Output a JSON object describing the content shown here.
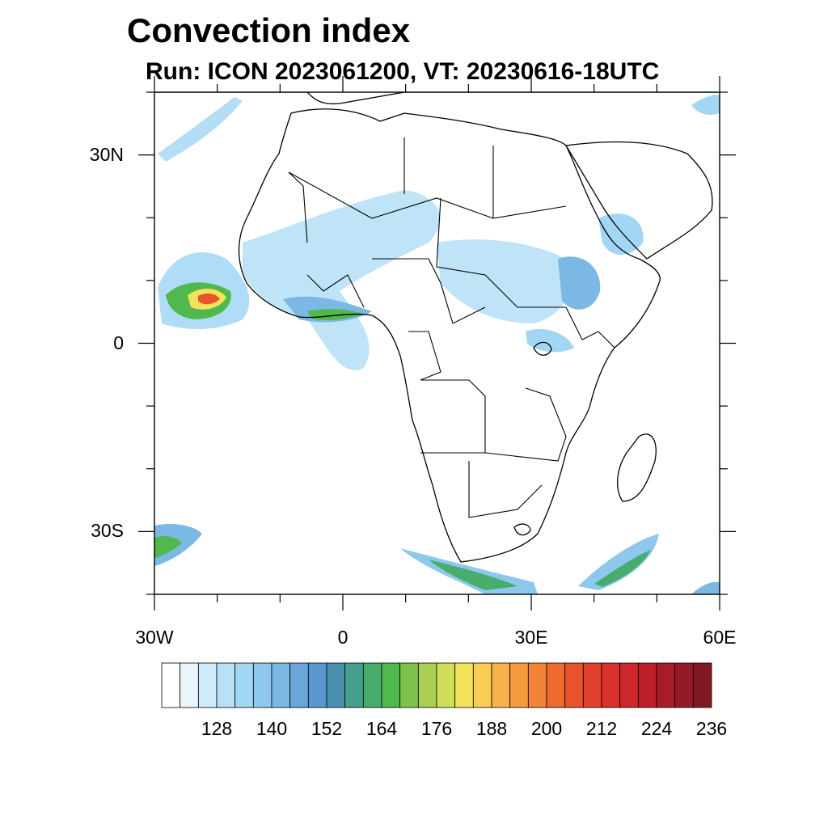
{
  "title": "Convection index",
  "subtitle": "Run: ICON 2023061200,  VT: 20230616-18UTC",
  "axes": {
    "lat_ticks": [
      {
        "value": 30,
        "label": "30N"
      },
      {
        "value": 0,
        "label": "0"
      },
      {
        "value": -30,
        "label": "30S"
      }
    ],
    "lon_ticks": [
      {
        "value": -30,
        "label": "30W"
      },
      {
        "value": 0,
        "label": "0"
      },
      {
        "value": 30,
        "label": "30E"
      },
      {
        "value": 60,
        "label": "60E"
      }
    ],
    "lon_range": [
      -30,
      60
    ],
    "lat_range": [
      -40,
      40
    ]
  },
  "colorbar": {
    "levels": [
      116,
      120,
      124,
      128,
      132,
      136,
      140,
      144,
      148,
      152,
      156,
      160,
      164,
      168,
      172,
      176,
      180,
      184,
      188,
      192,
      196,
      200,
      204,
      208,
      212,
      216,
      220,
      224,
      228,
      232,
      236
    ],
    "colors": [
      "#ffffff",
      "#eaf5fc",
      "#cfeaf8",
      "#b8e0f6",
      "#a1d6f4",
      "#8ec8ee",
      "#7cb8e4",
      "#6aa6da",
      "#5a96d0",
      "#4a8fae",
      "#47a08e",
      "#48ad6c",
      "#50b84c",
      "#7ec24e",
      "#a9cf52",
      "#d2de58",
      "#f2e35a",
      "#f8cc55",
      "#f8b24b",
      "#f69a40",
      "#f28438",
      "#ee6b30",
      "#e8522c",
      "#e13f2b",
      "#d9302b",
      "#cd262b",
      "#bc1f2a",
      "#a91c27",
      "#951a25",
      "#821822"
    ],
    "tick_labels": [
      "128",
      "140",
      "152",
      "164",
      "176",
      "188",
      "200",
      "212",
      "224",
      "236"
    ]
  }
}
